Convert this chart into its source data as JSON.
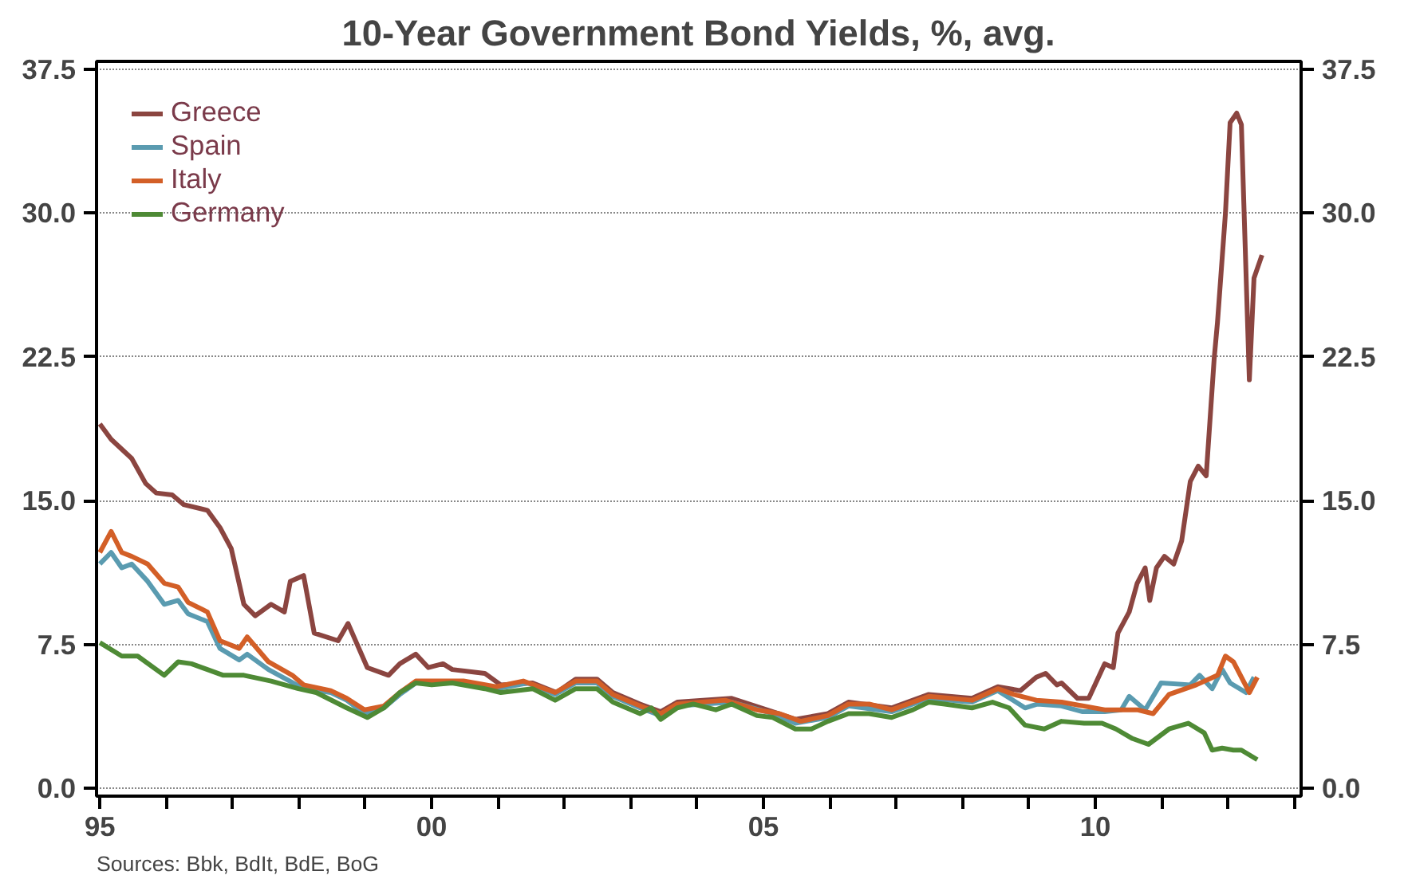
{
  "chart_data": {
    "type": "line",
    "title": "10-Year Government Bond Yields, %, avg.",
    "annotations": [
      "Sources: Bbk, BdIt, BdE, BoG"
    ],
    "xlim": [
      1994.95,
      2013.1
    ],
    "xticks": [
      {
        "value": 1995,
        "label": "95"
      },
      {
        "value": 1996,
        "label": null
      },
      {
        "value": 1997,
        "label": null
      },
      {
        "value": 1998,
        "label": null
      },
      {
        "value": 1999,
        "label": null
      },
      {
        "value": 2000,
        "label": "00"
      },
      {
        "value": 2001,
        "label": null
      },
      {
        "value": 2002,
        "label": null
      },
      {
        "value": 2003,
        "label": null
      },
      {
        "value": 2004,
        "label": null
      },
      {
        "value": 2005,
        "label": "05"
      },
      {
        "value": 2006,
        "label": null
      },
      {
        "value": 2007,
        "label": null
      },
      {
        "value": 2008,
        "label": null
      },
      {
        "value": 2009,
        "label": null
      },
      {
        "value": 2010,
        "label": "10"
      },
      {
        "value": 2011,
        "label": null
      },
      {
        "value": 2012,
        "label": null
      },
      {
        "value": 2013,
        "label": null
      }
    ],
    "ylim": [
      -0.4,
      37.9
    ],
    "yticks": [
      {
        "value": 0,
        "label": "0.0"
      },
      {
        "value": 7.5,
        "label": "7.5"
      },
      {
        "value": 15,
        "label": "15.0"
      },
      {
        "value": 22.5,
        "label": "22.5"
      },
      {
        "value": 30,
        "label": "30.0"
      },
      {
        "value": 37.5,
        "label": "37.5"
      }
    ],
    "y2lim": [
      -0.4,
      37.9
    ],
    "y2ticks": [
      {
        "value": 0,
        "label": "0.0"
      },
      {
        "value": 7.5,
        "label": "7.5"
      },
      {
        "value": 15,
        "label": "15.0"
      },
      {
        "value": 22.5,
        "label": "22.5"
      },
      {
        "value": 30,
        "label": "30.0"
      },
      {
        "value": 37.5,
        "label": "37.5"
      }
    ],
    "grid": "y",
    "legend": "top left",
    "marker": "none",
    "line_style": "solid",
    "series": [
      {
        "name": "Greece",
        "color": "#8b4540",
        "x": [
          1995.0,
          1995.17,
          1995.48,
          1995.69,
          1995.85,
          1996.09,
          1996.26,
          1996.62,
          1996.81,
          1996.98,
          1997.17,
          1997.34,
          1997.58,
          1997.78,
          1997.87,
          1998.07,
          1998.23,
          1998.59,
          1998.74,
          1999.03,
          1999.35,
          1999.52,
          1999.76,
          1999.95,
          2000.17,
          2000.31,
          2000.8,
          2001.04,
          2001.52,
          2001.88,
          2002.17,
          2002.49,
          2002.73,
          2003.14,
          2003.45,
          2003.7,
          2004.52,
          2005.14,
          2005.48,
          2005.97,
          2006.28,
          2006.93,
          2007.49,
          2008.14,
          2008.53,
          2008.87,
          2009.11,
          2009.25,
          2009.42,
          2009.49,
          2009.73,
          2009.9,
          2010.14,
          2010.27,
          2010.34,
          2010.51,
          2010.63,
          2010.75,
          2010.82,
          2010.92,
          2011.04,
          2011.18,
          2011.3,
          2011.43,
          2011.55,
          2011.67,
          2011.79,
          2011.84,
          2011.96,
          2012.03,
          2012.13,
          2012.2,
          2012.32,
          2012.39,
          2012.51
        ],
        "values": [
          19.0,
          18.2,
          17.2,
          15.9,
          15.4,
          15.3,
          14.8,
          14.5,
          13.6,
          12.5,
          9.6,
          9.0,
          9.6,
          9.2,
          10.8,
          11.1,
          8.1,
          7.7,
          8.6,
          6.3,
          5.9,
          6.5,
          7.0,
          6.3,
          6.5,
          6.2,
          6.0,
          5.4,
          5.5,
          5.0,
          5.7,
          5.7,
          5.0,
          4.4,
          4.0,
          4.5,
          4.7,
          4.0,
          3.6,
          3.9,
          4.5,
          4.2,
          4.9,
          4.7,
          5.3,
          5.1,
          5.8,
          6.0,
          5.4,
          5.5,
          4.7,
          4.7,
          6.5,
          6.3,
          8.1,
          9.2,
          10.7,
          11.5,
          9.8,
          11.5,
          12.1,
          11.7,
          12.9,
          16.0,
          16.8,
          16.3,
          22.4,
          24.3,
          30.0,
          34.7,
          35.2,
          34.6,
          21.3,
          26.6,
          27.8
        ]
      },
      {
        "name": "Spain",
        "color": "#5a9bb0",
        "x": [
          1995.0,
          1995.17,
          1995.33,
          1995.48,
          1995.72,
          1995.97,
          1996.18,
          1996.33,
          1996.62,
          1996.81,
          1997.1,
          1997.22,
          1997.54,
          1997.75,
          1998.07,
          1998.48,
          1998.72,
          1998.99,
          1999.28,
          1999.52,
          1999.76,
          2000.48,
          2000.97,
          2001.45,
          2001.86,
          2002.17,
          2002.49,
          2002.73,
          2003.14,
          2003.45,
          2003.7,
          2004.52,
          2005.14,
          2005.48,
          2005.97,
          2006.28,
          2006.93,
          2007.49,
          2008.14,
          2008.53,
          2008.94,
          2009.13,
          2009.49,
          2009.81,
          2010.14,
          2010.39,
          2010.51,
          2010.75,
          2010.99,
          2011.43,
          2011.57,
          2011.76,
          2011.91,
          2012.03,
          2012.27,
          2012.39
        ],
        "values": [
          11.7,
          12.3,
          11.5,
          11.7,
          10.8,
          9.6,
          9.8,
          9.1,
          8.7,
          7.3,
          6.7,
          7.0,
          6.2,
          5.8,
          5.2,
          5.0,
          4.6,
          3.9,
          4.2,
          4.9,
          5.5,
          5.5,
          5.2,
          5.5,
          4.9,
          5.5,
          5.5,
          4.8,
          4.2,
          3.8,
          4.3,
          4.5,
          3.9,
          3.4,
          3.7,
          4.3,
          4.0,
          4.7,
          4.5,
          5.1,
          4.2,
          4.4,
          4.3,
          4.0,
          4.0,
          4.1,
          4.8,
          4.1,
          5.5,
          5.4,
          5.9,
          5.2,
          6.2,
          5.5,
          5.0,
          5.8
        ]
      },
      {
        "name": "Italy",
        "color": "#d35f27",
        "x": [
          1995.0,
          1995.17,
          1995.33,
          1995.48,
          1995.72,
          1995.97,
          1996.18,
          1996.33,
          1996.62,
          1996.81,
          1997.1,
          1997.22,
          1997.54,
          1997.9,
          1998.07,
          1998.48,
          1998.72,
          1998.99,
          1999.28,
          1999.52,
          1999.76,
          2000.48,
          2000.97,
          2001.38,
          2001.86,
          2002.17,
          2002.49,
          2002.73,
          2003.14,
          2003.45,
          2003.7,
          2004.42,
          2004.9,
          2005.24,
          2005.56,
          2005.97,
          2006.28,
          2006.59,
          2006.93,
          2007.49,
          2008.14,
          2008.53,
          2008.77,
          2009.11,
          2009.49,
          2010.14,
          2010.63,
          2010.87,
          2011.11,
          2011.52,
          2011.84,
          2011.96,
          2012.08,
          2012.32,
          2012.44
        ],
        "values": [
          12.3,
          13.4,
          12.3,
          12.1,
          11.7,
          10.7,
          10.5,
          9.7,
          9.2,
          7.7,
          7.3,
          7.9,
          6.6,
          5.9,
          5.4,
          5.1,
          4.7,
          4.1,
          4.3,
          5.0,
          5.6,
          5.6,
          5.3,
          5.6,
          5.0,
          5.6,
          5.6,
          4.9,
          4.3,
          3.9,
          4.4,
          4.6,
          4.1,
          3.9,
          3.5,
          3.8,
          4.4,
          4.4,
          4.1,
          4.8,
          4.6,
          5.2,
          4.9,
          4.6,
          4.5,
          4.1,
          4.1,
          3.9,
          4.9,
          5.4,
          5.9,
          6.9,
          6.6,
          5.0,
          5.8
        ]
      },
      {
        "name": "Germany",
        "color": "#4e8a35",
        "x": [
          1995.0,
          1995.33,
          1995.57,
          1995.97,
          1996.18,
          1996.38,
          1996.62,
          1996.86,
          1997.17,
          1997.58,
          1997.99,
          1998.26,
          1998.72,
          1999.03,
          1999.28,
          1999.52,
          1999.76,
          2000.0,
          2000.31,
          2000.8,
          2001.04,
          2001.52,
          2001.86,
          2002.17,
          2002.49,
          2002.73,
          2003.14,
          2003.31,
          2003.45,
          2003.7,
          2003.94,
          2004.28,
          2004.52,
          2004.9,
          2005.14,
          2005.48,
          2005.72,
          2005.97,
          2006.28,
          2006.59,
          2006.93,
          2007.25,
          2007.49,
          2007.73,
          2008.14,
          2008.45,
          2008.7,
          2008.94,
          2009.23,
          2009.49,
          2009.83,
          2010.1,
          2010.31,
          2010.56,
          2010.8,
          2011.11,
          2011.4,
          2011.64,
          2011.76,
          2011.91,
          2012.08,
          2012.2,
          2012.44
        ],
        "values": [
          7.6,
          6.9,
          6.9,
          5.9,
          6.6,
          6.5,
          6.2,
          5.9,
          5.9,
          5.6,
          5.2,
          5.0,
          4.2,
          3.7,
          4.2,
          5.0,
          5.5,
          5.4,
          5.5,
          5.2,
          5.0,
          5.2,
          4.6,
          5.2,
          5.2,
          4.5,
          3.9,
          4.2,
          3.6,
          4.2,
          4.4,
          4.1,
          4.4,
          3.8,
          3.7,
          3.1,
          3.1,
          3.5,
          3.9,
          3.9,
          3.7,
          4.1,
          4.5,
          4.4,
          4.2,
          4.5,
          4.2,
          3.3,
          3.1,
          3.5,
          3.4,
          3.4,
          3.1,
          2.6,
          2.3,
          3.1,
          3.4,
          2.9,
          2.0,
          2.1,
          2.0,
          2.0,
          1.5
        ]
      }
    ]
  }
}
